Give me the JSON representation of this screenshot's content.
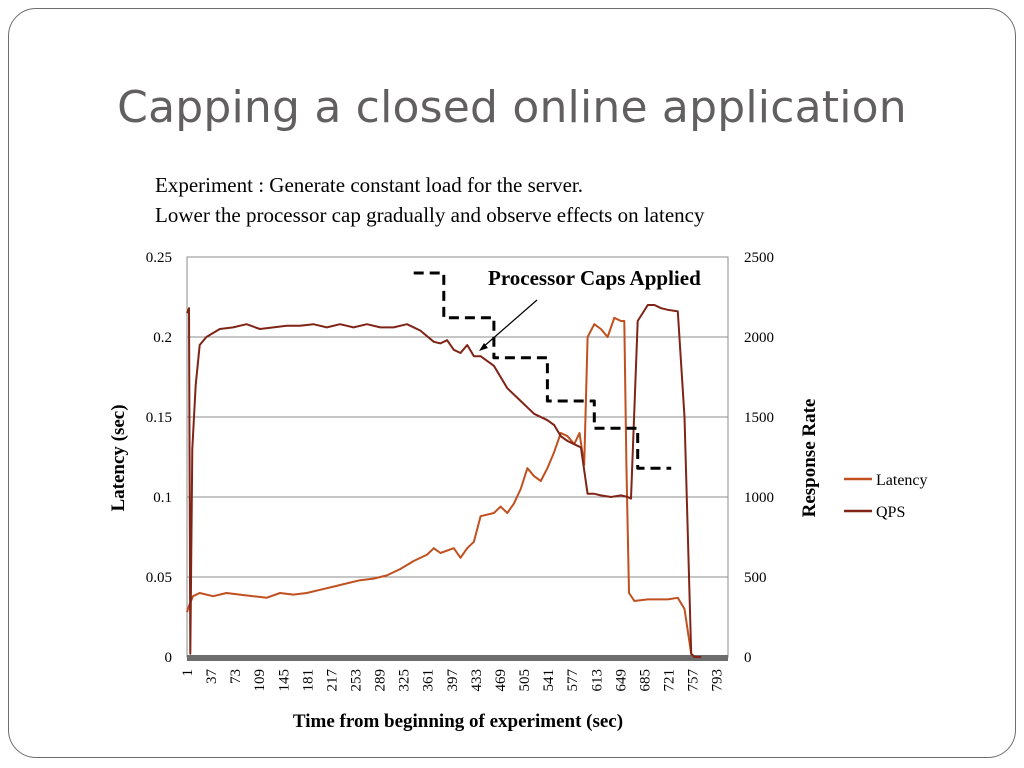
{
  "slide": {
    "title": "Capping a closed online application",
    "subtitle_lines": [
      "Experiment : Generate constant load for the server.",
      "Lower the processor cap gradually and observe effects on latency"
    ]
  },
  "chart_data": {
    "type": "line",
    "xlabel": "Time from beginning of experiment (sec)",
    "ylabel_left": "Latency (sec)",
    "ylabel_right": "Response Rate",
    "ylim_left": [
      0,
      0.25
    ],
    "ylim_right": [
      0,
      2500
    ],
    "xlim": [
      1,
      810
    ],
    "yticks_left": [
      "0",
      "0.05",
      "0.1",
      "0.15",
      "0.2",
      "0.25"
    ],
    "yticks_right": [
      "0",
      "500",
      "1000",
      "1500",
      "2000",
      "2500"
    ],
    "xticks": [
      "1",
      "37",
      "73",
      "109",
      "145",
      "181",
      "217",
      "253",
      "289",
      "325",
      "361",
      "397",
      "433",
      "469",
      "505",
      "541",
      "577",
      "613",
      "649",
      "685",
      "721",
      "757",
      "793"
    ],
    "grid": "horizontal",
    "legend_position": "right",
    "annotation": "Processor Caps Applied",
    "colors": {
      "Latency": "#c0501f",
      "QPS": "#7f2416",
      "caps": "#000000"
    },
    "series": [
      {
        "name": "Latency",
        "axis": "left",
        "x": [
          1,
          4,
          10,
          20,
          40,
          60,
          80,
          100,
          120,
          140,
          160,
          180,
          200,
          220,
          240,
          260,
          280,
          300,
          320,
          340,
          360,
          370,
          380,
          400,
          410,
          420,
          430,
          440,
          460,
          470,
          480,
          490,
          500,
          510,
          520,
          530,
          540,
          550,
          560,
          570,
          580,
          588,
          595,
          600,
          610,
          620,
          630,
          640,
          650,
          655,
          658,
          662,
          670,
          690,
          700,
          710,
          720,
          735,
          745,
          755,
          760,
          770
        ],
        "y": [
          0.028,
          0.032,
          0.038,
          0.04,
          0.038,
          0.04,
          0.039,
          0.038,
          0.037,
          0.04,
          0.039,
          0.04,
          0.042,
          0.044,
          0.046,
          0.048,
          0.049,
          0.051,
          0.055,
          0.06,
          0.064,
          0.068,
          0.065,
          0.068,
          0.062,
          0.068,
          0.072,
          0.088,
          0.09,
          0.094,
          0.09,
          0.096,
          0.105,
          0.118,
          0.113,
          0.11,
          0.118,
          0.128,
          0.14,
          0.138,
          0.133,
          0.14,
          0.12,
          0.2,
          0.208,
          0.205,
          0.2,
          0.212,
          0.21,
          0.21,
          0.12,
          0.04,
          0.035,
          0.036,
          0.036,
          0.036,
          0.036,
          0.037,
          0.03,
          0.002,
          0.0,
          0.0
        ]
      },
      {
        "name": "QPS",
        "axis": "right",
        "x": [
          1,
          4,
          6,
          9,
          14,
          20,
          30,
          50,
          70,
          90,
          110,
          130,
          150,
          170,
          190,
          210,
          230,
          250,
          270,
          290,
          310,
          330,
          350,
          370,
          380,
          390,
          400,
          410,
          420,
          430,
          440,
          460,
          480,
          500,
          520,
          540,
          550,
          560,
          570,
          580,
          585,
          590,
          600,
          610,
          620,
          635,
          650,
          660,
          665,
          675,
          690,
          700,
          710,
          720,
          735,
          745,
          755,
          760,
          770
        ],
        "y": [
          2150,
          2180,
          20,
          1300,
          1700,
          1950,
          2000,
          2050,
          2060,
          2080,
          2050,
          2060,
          2070,
          2070,
          2080,
          2060,
          2080,
          2060,
          2080,
          2060,
          2060,
          2080,
          2040,
          1970,
          1960,
          1980,
          1920,
          1900,
          1950,
          1880,
          1880,
          1820,
          1680,
          1600,
          1520,
          1480,
          1450,
          1380,
          1350,
          1330,
          1320,
          1310,
          1020,
          1020,
          1010,
          1000,
          1010,
          1000,
          990,
          2100,
          2200,
          2200,
          2180,
          2170,
          2160,
          1500,
          20,
          0,
          0
        ]
      },
      {
        "name": "Processor Caps Applied",
        "axis": "right",
        "x": [
          340,
          385,
          385,
          460,
          460,
          540,
          540,
          610,
          610,
          675,
          675,
          725
        ],
        "y": [
          2400,
          2400,
          2120,
          2120,
          1870,
          1870,
          1600,
          1600,
          1430,
          1430,
          1180,
          1180
        ]
      }
    ]
  }
}
